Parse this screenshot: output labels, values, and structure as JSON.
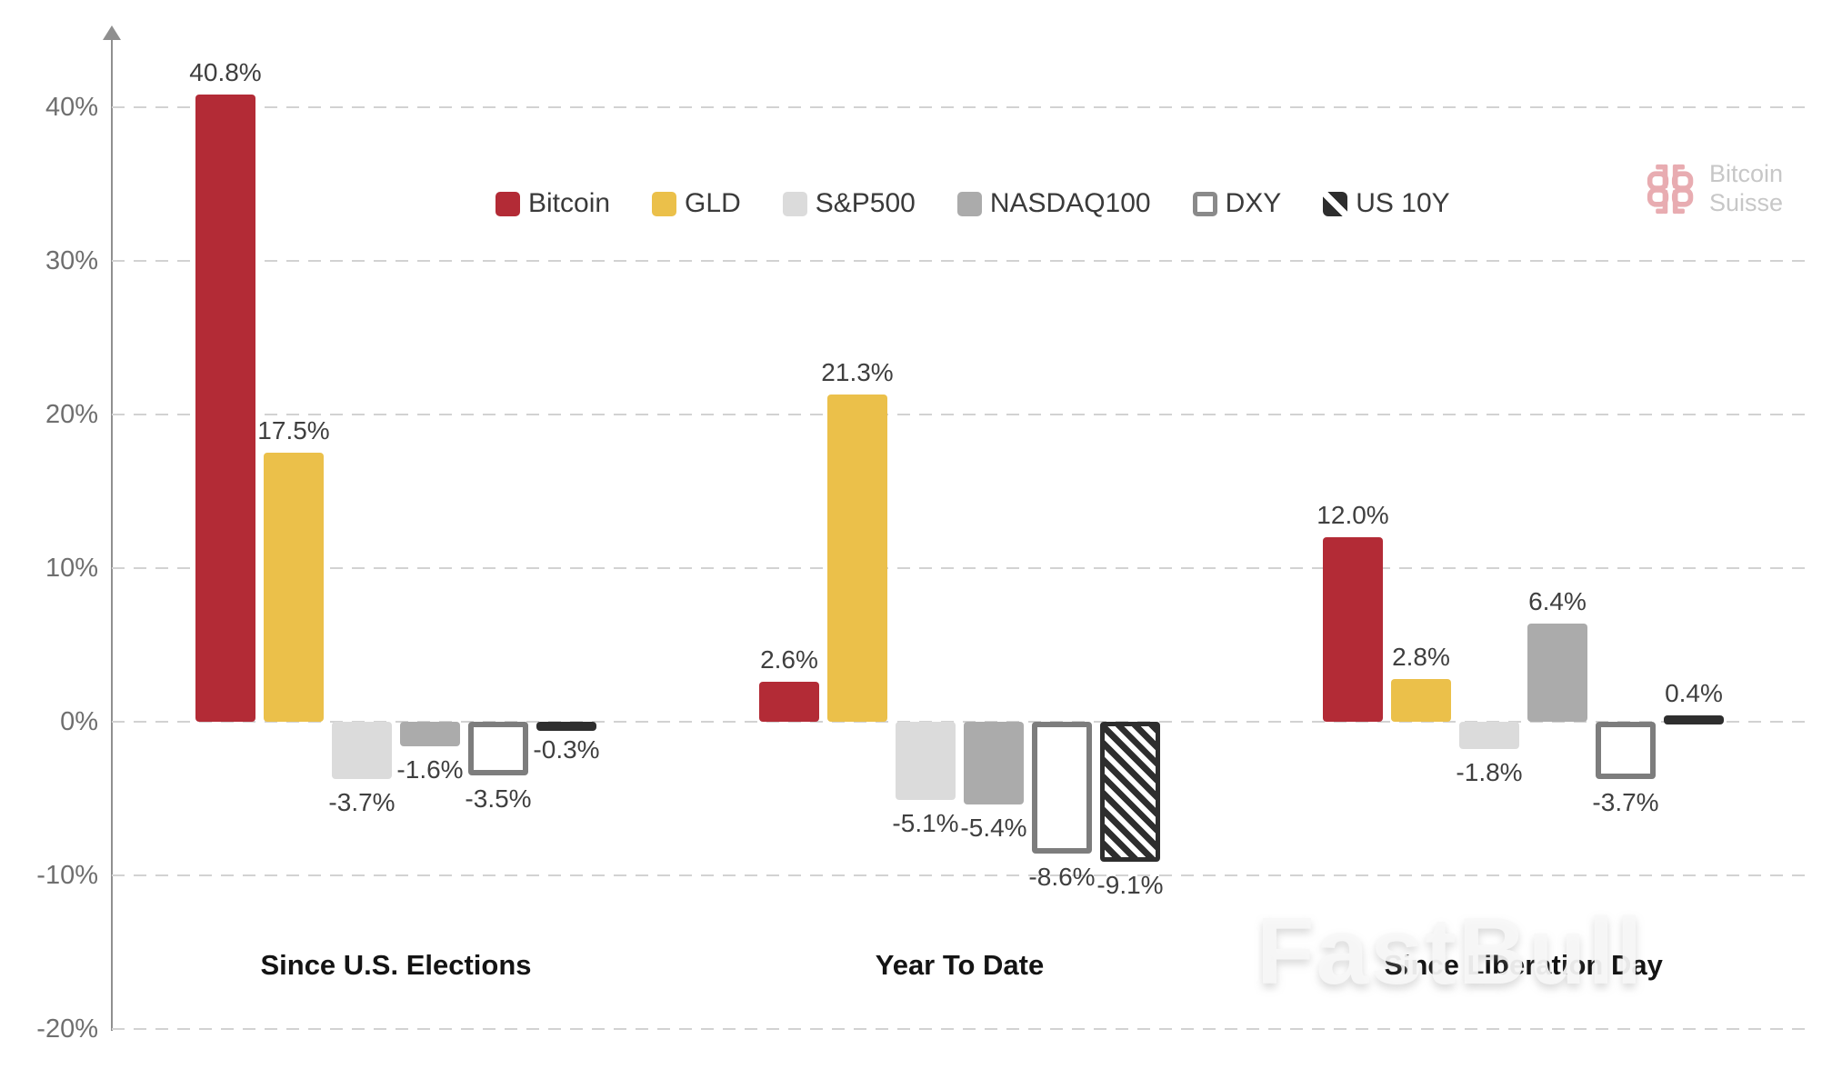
{
  "brand": {
    "name_line1": "Bitcoin",
    "name_line2": "Suisse"
  },
  "watermark": "FastBull",
  "chart_data": {
    "type": "bar",
    "title": "",
    "xlabel": "",
    "ylabel": "",
    "categories": [
      "Since U.S. Elections",
      "Year To Date",
      "Since Liberation Day"
    ],
    "series": [
      {
        "name": "Bitcoin",
        "style": "solid",
        "color": "#B32B36",
        "values": [
          40.8,
          2.6,
          12.0
        ]
      },
      {
        "name": "GLD",
        "style": "solid",
        "color": "#EBC04A",
        "values": [
          17.5,
          21.3,
          2.8
        ]
      },
      {
        "name": "S&P500",
        "style": "solid",
        "color": "#DBDBDB",
        "values": [
          -3.7,
          -5.1,
          -1.8
        ]
      },
      {
        "name": "NASDAQ100",
        "style": "solid",
        "color": "#ABABAB",
        "values": [
          -1.6,
          -5.4,
          6.4
        ]
      },
      {
        "name": "DXY",
        "style": "outline",
        "color": "#FFFFFF",
        "border_color": "#7D7D7D",
        "values": [
          -3.5,
          -8.6,
          -3.7
        ]
      },
      {
        "name": "US 10Y",
        "style": "hatch",
        "color": "#2E2E2E",
        "hatch_bg": "#FFFFFF",
        "values": [
          -0.3,
          -9.1,
          0.4
        ]
      }
    ],
    "value_labels": [
      [
        "40.8%",
        "2.6%",
        "12.0%"
      ],
      [
        "17.5%",
        "21.3%",
        "2.8%"
      ],
      [
        "-3.7%",
        "-5.1%",
        "-1.8%"
      ],
      [
        "-1.6%",
        "-5.4%",
        "6.4%"
      ],
      [
        "-3.5%",
        "-8.6%",
        "-3.7%"
      ],
      [
        "-0.3%",
        "-9.1%",
        "0.4%"
      ]
    ],
    "y_axis": {
      "unit": "%",
      "ticks": [
        {
          "label": "40%",
          "value": 40
        },
        {
          "label": "30%",
          "value": 30
        },
        {
          "label": "20%",
          "value": 20
        },
        {
          "label": "10%",
          "value": 10
        },
        {
          "label": "0%",
          "value": 0
        },
        {
          "label": "-10%",
          "value": -10
        },
        {
          "label": "-20%",
          "value": -20
        }
      ],
      "ylim": [
        -20,
        45
      ],
      "grid": "dashed"
    },
    "legend": {
      "position": "top-center",
      "entries": [
        "Bitcoin",
        "GLD",
        "S&P500",
        "NASDAQ100",
        "DXY",
        "US 10Y"
      ]
    }
  }
}
